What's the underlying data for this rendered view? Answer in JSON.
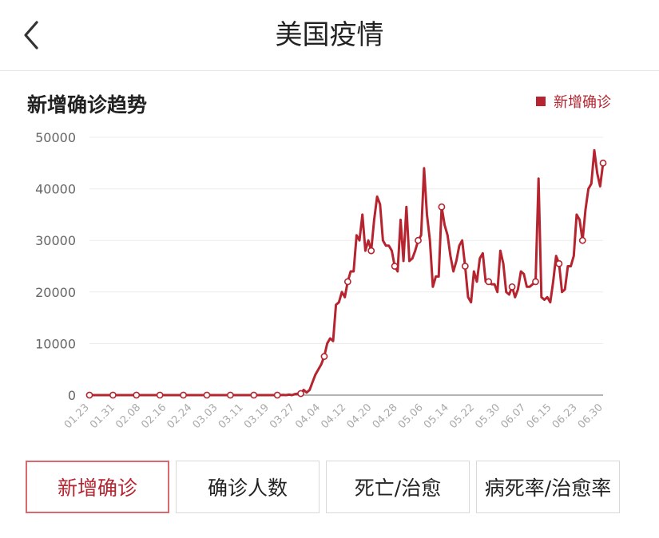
{
  "header": {
    "title": "美国疫情"
  },
  "chart_header": {
    "title": "新增确诊趋势",
    "legend_label": "新增确诊"
  },
  "colors": {
    "accent": "#b5242f",
    "tab_active_border": "#d86a6f"
  },
  "icons": {
    "back": "chevron-left-icon"
  },
  "tabs": [
    {
      "label": "新增确诊",
      "active": true
    },
    {
      "label": "确诊人数",
      "active": false
    },
    {
      "label": "死亡/治愈",
      "active": false
    },
    {
      "label": "病死率/治愈率",
      "active": false
    }
  ],
  "chart_data": {
    "type": "line",
    "title": "新增确诊趋势",
    "legend": [
      "新增确诊"
    ],
    "legend_position": "top-right",
    "ylim": [
      0,
      50000
    ],
    "yticks": [
      0,
      10000,
      20000,
      30000,
      40000,
      50000
    ],
    "xticks": [
      "01.23",
      "01.31",
      "02.08",
      "02.16",
      "02.24",
      "03.03",
      "03.11",
      "03.19",
      "03.27",
      "04.04",
      "04.12",
      "04.20",
      "04.28",
      "05.06",
      "05.14",
      "05.22",
      "05.30",
      "06.07",
      "06.15",
      "06.23",
      "06.30"
    ],
    "grid": "horizontal",
    "series": [
      {
        "name": "新增确诊",
        "color": "#b5242f",
        "start_date": "01.23",
        "values": [
          0,
          0,
          0,
          0,
          0,
          0,
          0,
          0,
          0,
          0,
          0,
          0,
          0,
          0,
          0,
          0,
          0,
          0,
          0,
          0,
          0,
          0,
          0,
          0,
          0,
          0,
          0,
          0,
          0,
          0,
          0,
          0,
          0,
          0,
          0,
          0,
          0,
          0,
          0,
          0,
          0,
          0,
          0,
          0,
          0,
          0,
          0,
          0,
          0,
          0,
          0,
          0,
          0,
          0,
          0,
          0,
          0,
          0,
          0,
          0,
          0,
          0,
          0,
          0,
          0,
          0,
          50,
          0,
          100,
          0,
          200,
          300,
          300,
          1000,
          500,
          1000,
          2500,
          4000,
          5000,
          6000,
          7500,
          10000,
          11000,
          10500,
          17500,
          18000,
          20000,
          19000,
          22000,
          24000,
          24000,
          31000,
          30000,
          35000,
          28000,
          30000,
          28000,
          34000,
          38500,
          37000,
          30000,
          29000,
          29000,
          28000,
          25000,
          24000,
          34000,
          26000,
          36500,
          26000,
          26500,
          28000,
          30000,
          31000,
          44000,
          35000,
          30000,
          21000,
          23000,
          23000,
          36500,
          33000,
          31000,
          27000,
          24000,
          26000,
          29000,
          30000,
          25000,
          19000,
          18000,
          24000,
          22000,
          26500,
          27500,
          22000,
          22000,
          21500,
          21500,
          20000,
          28000,
          25500,
          20000,
          19500,
          21000,
          19000,
          20500,
          24000,
          23500,
          21000,
          21000,
          21500,
          22000,
          42000,
          19000,
          18500,
          19000,
          18000,
          22000,
          27000,
          25500,
          20000,
          20500,
          25000,
          25000,
          27000,
          35000,
          34000,
          30000,
          36000,
          40000,
          41000,
          47500,
          43000,
          40500,
          45000
        ]
      }
    ],
    "marked_points": {
      "interval": 8,
      "marker": "hollow-circle"
    }
  }
}
